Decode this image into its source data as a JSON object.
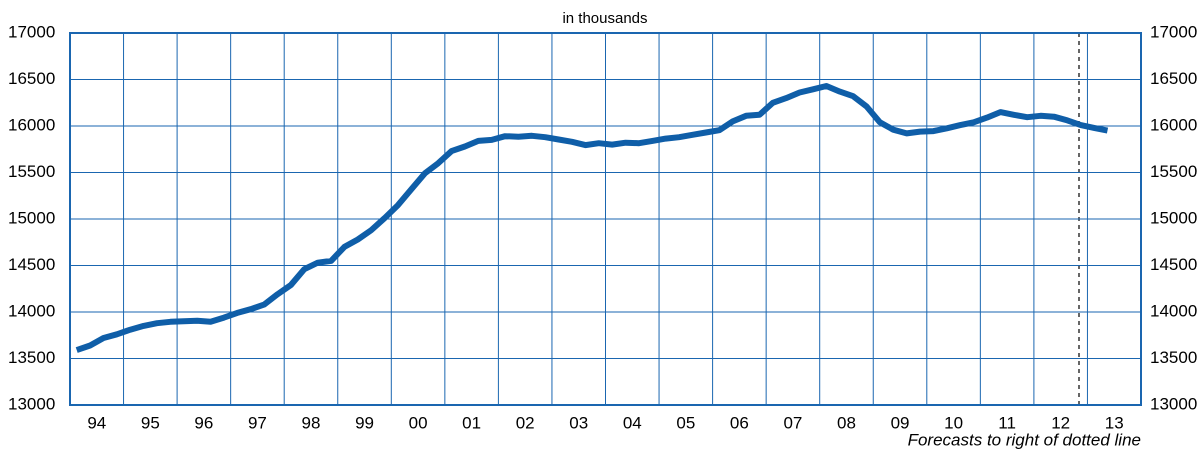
{
  "chart_data": {
    "type": "line",
    "title": "in thousands",
    "annotation": "Forecasts to right of dotted line",
    "categories": [
      "94",
      "95",
      "96",
      "97",
      "98",
      "99",
      "00",
      "01",
      "02",
      "03",
      "04",
      "05",
      "06",
      "07",
      "08",
      "09",
      "10",
      "11",
      "12",
      "13"
    ],
    "series": [
      {
        "name": null,
        "color": "#0f5ea8",
        "values": [
          [
            13590,
            13640,
            13720,
            13760
          ],
          [
            13810,
            13850,
            13880,
            13895
          ],
          [
            13900,
            13905,
            13895,
            13940
          ],
          [
            13990,
            14030,
            14080,
            14190
          ],
          [
            14290,
            14460,
            14530,
            14550
          ],
          [
            14700,
            14780,
            14880,
            15010
          ],
          [
            15150,
            15320,
            15490,
            15600
          ],
          [
            15730,
            15780,
            15840,
            15850
          ],
          [
            15890,
            15885,
            15895,
            15880
          ],
          [
            15855,
            15830,
            15795,
            15815
          ],
          [
            15800,
            15820,
            15815,
            15840
          ],
          [
            15865,
            15880,
            15905,
            15930
          ],
          [
            15955,
            16050,
            16110,
            16120
          ],
          [
            16250,
            16300,
            16360,
            16395
          ],
          [
            16430,
            16370,
            16320,
            16210
          ],
          [
            16040,
            15960,
            15920,
            15940
          ],
          [
            15945,
            15975,
            16010,
            16040
          ],
          [
            16090,
            16150,
            16120,
            16095
          ],
          [
            16110,
            16100,
            16060,
            16010
          ],
          [
            15980,
            15950,
            null,
            null
          ]
        ]
      }
    ],
    "ylim": [
      13000,
      17000
    ],
    "yticks": [
      13000,
      13500,
      14000,
      14500,
      15000,
      15500,
      16000,
      16500,
      17000
    ],
    "grid": true
  }
}
